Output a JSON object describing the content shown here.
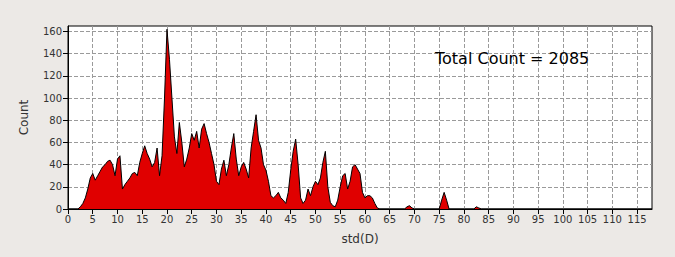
{
  "chart_data": {
    "type": "area",
    "x_label": "std(D)",
    "y_label": "Count",
    "annotation": "Total Count = 2085",
    "color": "#e00000",
    "x": [
      0,
      2,
      2.5,
      3,
      3.5,
      4,
      4.5,
      5,
      5.5,
      6,
      6.5,
      7,
      7.5,
      8,
      8.5,
      9,
      9.5,
      10,
      10.5,
      11,
      11.5,
      12,
      12.5,
      13,
      13.5,
      14,
      14.5,
      15,
      15.5,
      16,
      16.5,
      17,
      17.5,
      18,
      18.5,
      19,
      19.5,
      20,
      20.5,
      21,
      21.5,
      22,
      22.5,
      23,
      23.5,
      24,
      24.5,
      25,
      25.5,
      26,
      26.5,
      27,
      27.5,
      28,
      28.5,
      29,
      29.5,
      30,
      30.5,
      31,
      31.5,
      32,
      32.5,
      33,
      33.5,
      34,
      34.5,
      35,
      35.5,
      36,
      36.5,
      37,
      37.5,
      38,
      38.5,
      39,
      39.5,
      40,
      40.5,
      41,
      41.5,
      42,
      42.5,
      43,
      43.5,
      44,
      44.5,
      45,
      45.5,
      46,
      46.5,
      47,
      47.5,
      48,
      48.5,
      49,
      49.5,
      50,
      50.5,
      51,
      51.5,
      52,
      52.5,
      53,
      53.5,
      54,
      54.5,
      55,
      55.5,
      56,
      56.5,
      57,
      57.5,
      58,
      58.5,
      59,
      59.5,
      60,
      60.5,
      61,
      61.5,
      62,
      62.5,
      63,
      68,
      68.5,
      69,
      69.5,
      70,
      75,
      75.5,
      76,
      76.5,
      77,
      82,
      82.5,
      83,
      83.5,
      118
    ],
    "values": [
      0,
      0,
      2,
      5,
      10,
      18,
      28,
      32,
      26,
      30,
      34,
      38,
      40,
      43,
      44,
      40,
      30,
      45,
      48,
      18,
      22,
      25,
      28,
      32,
      33,
      30,
      42,
      50,
      57,
      50,
      45,
      38,
      42,
      55,
      30,
      48,
      100,
      162,
      135,
      100,
      65,
      50,
      78,
      60,
      38,
      45,
      55,
      68,
      62,
      70,
      55,
      72,
      77,
      68,
      60,
      50,
      40,
      25,
      22,
      36,
      44,
      30,
      40,
      55,
      68,
      45,
      30,
      38,
      42,
      36,
      28,
      55,
      70,
      85,
      62,
      55,
      40,
      35,
      25,
      12,
      10,
      12,
      15,
      10,
      8,
      5,
      15,
      35,
      52,
      63,
      40,
      10,
      5,
      8,
      18,
      12,
      20,
      25,
      22,
      28,
      42,
      52,
      20,
      6,
      3,
      2,
      8,
      20,
      30,
      32,
      18,
      25,
      38,
      40,
      36,
      32,
      15,
      10,
      12,
      12,
      10,
      5,
      1,
      0,
      0,
      2,
      3,
      1,
      0,
      0,
      8,
      15,
      8,
      0,
      0,
      2,
      1,
      0,
      0
    ],
    "xlim": [
      0,
      118
    ],
    "xticks": [
      0,
      5,
      10,
      15,
      20,
      25,
      30,
      35,
      40,
      45,
      50,
      55,
      60,
      65,
      70,
      75,
      80,
      85,
      90,
      95,
      100,
      105,
      110,
      115
    ],
    "ylim": [
      0,
      165
    ],
    "yticks": [
      0,
      20,
      40,
      60,
      80,
      100,
      120,
      140,
      160
    ],
    "grid": true
  }
}
